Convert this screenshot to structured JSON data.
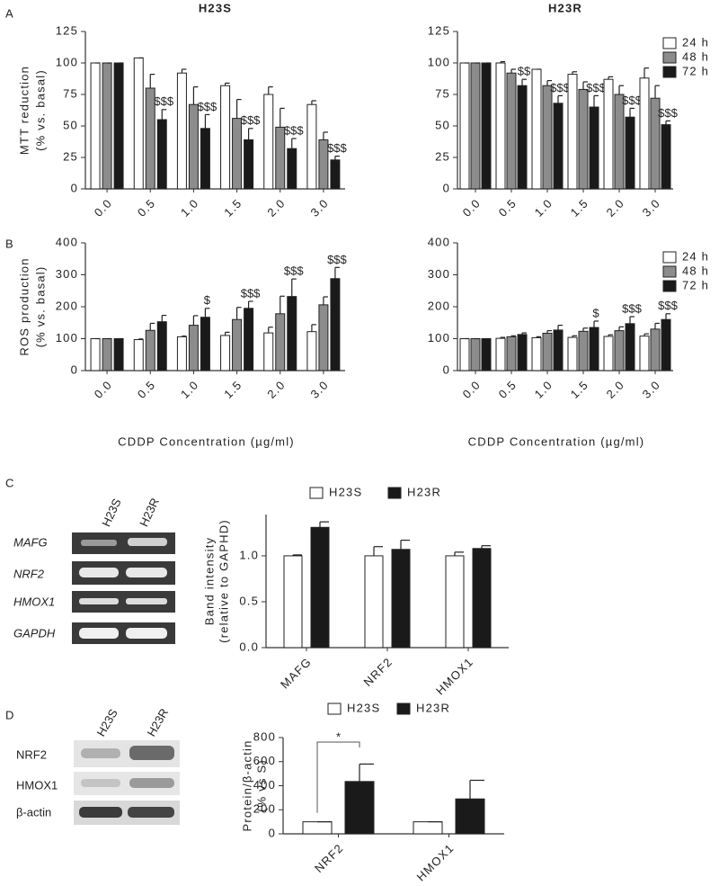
{
  "figure": {
    "panel_labels": [
      "A",
      "B",
      "C",
      "D"
    ],
    "gels": [
      {
        "columns": [
          "H23S",
          "H23R"
        ],
        "rows": [
          "MAFG",
          "NRF2",
          "HMOX1",
          "GAPDH"
        ]
      },
      {
        "columns": [
          "H23S",
          "H23R"
        ],
        "rows": [
          "NRF2",
          "HMOX1",
          "β-actin"
        ]
      }
    ]
  },
  "chart_data": [
    {
      "type": "bar",
      "title": "H23S",
      "y_label": [
        "MTT reduction",
        "(% vs. basal)"
      ],
      "categories": [
        "0.0",
        "0.5",
        "1.0",
        "1.5",
        "2.0",
        "3.0"
      ],
      "ylim": [
        0,
        125
      ],
      "yticks": [
        0,
        25,
        50,
        75,
        100,
        125
      ],
      "series": [
        {
          "color": "#ffffff",
          "values": [
            100,
            104,
            92,
            82,
            75,
            67
          ],
          "errors": [
            0,
            0,
            3,
            2,
            6,
            3
          ]
        },
        {
          "color": "#8c8c8c",
          "values": [
            100,
            80,
            67,
            56,
            49,
            39
          ],
          "errors": [
            0,
            11,
            14,
            15,
            15,
            6
          ]
        },
        {
          "color": "#1a1a1a",
          "values": [
            100,
            55,
            48,
            39,
            32,
            23
          ],
          "errors": [
            0,
            8,
            11,
            9,
            8,
            3
          ],
          "annotations": [
            null,
            "$$$",
            "$$$",
            "$$$",
            "$$$",
            "$$$"
          ]
        }
      ]
    },
    {
      "type": "bar",
      "title": "H23R",
      "legend": "top-right",
      "categories": [
        "0.0",
        "0.5",
        "1.0",
        "1.5",
        "2.0",
        "3.0"
      ],
      "ylim": [
        0,
        125
      ],
      "yticks": [
        0,
        25,
        50,
        75,
        100,
        125
      ],
      "series": [
        {
          "name": "24 h",
          "color": "#ffffff",
          "values": [
            100,
            100,
            95,
            91,
            87,
            88
          ],
          "errors": [
            0,
            1,
            0,
            2,
            2,
            8
          ]
        },
        {
          "name": "48 h",
          "color": "#8c8c8c",
          "values": [
            100,
            92,
            82,
            79,
            75,
            72
          ],
          "errors": [
            0,
            3,
            4,
            6,
            7,
            10
          ]
        },
        {
          "name": "72 h",
          "color": "#1a1a1a",
          "values": [
            100,
            82,
            68,
            65,
            57,
            51
          ],
          "errors": [
            0,
            5,
            6,
            9,
            7,
            3
          ],
          "annotations": [
            null,
            "$$",
            "$$$",
            "$$$",
            "$$$",
            "$$$"
          ]
        }
      ]
    },
    {
      "type": "bar",
      "y_label": [
        "ROS production",
        "(% vs. basal)"
      ],
      "x_label": "CDDP Concentration (µg/ml)",
      "categories": [
        "0.0",
        "0.5",
        "1.0",
        "1.5",
        "2.0",
        "3.0"
      ],
      "ylim": [
        0,
        400
      ],
      "yticks": [
        0,
        100,
        200,
        300,
        400
      ],
      "series": [
        {
          "color": "#ffffff",
          "values": [
            100,
            97,
            106,
            110,
            118,
            122
          ],
          "errors": [
            0,
            2,
            2,
            10,
            18,
            22
          ]
        },
        {
          "color": "#8c8c8c",
          "values": [
            100,
            126,
            142,
            160,
            178,
            206
          ],
          "errors": [
            0,
            22,
            30,
            38,
            55,
            25
          ]
        },
        {
          "color": "#1a1a1a",
          "values": [
            100,
            153,
            167,
            195,
            232,
            288
          ],
          "errors": [
            0,
            20,
            28,
            22,
            55,
            35
          ],
          "annotations": [
            null,
            null,
            "$",
            "$$$",
            "$$$",
            "$$$"
          ]
        }
      ]
    },
    {
      "type": "bar",
      "legend": "top-right",
      "x_label": "CDDP Concentration (µg/ml)",
      "categories": [
        "0.0",
        "0.5",
        "1.0",
        "1.5",
        "2.0",
        "3.0"
      ],
      "ylim": [
        0,
        400
      ],
      "yticks": [
        0,
        100,
        200,
        300,
        400
      ],
      "series": [
        {
          "name": "24 h",
          "color": "#ffffff",
          "values": [
            100,
            101,
            103,
            104,
            107,
            108
          ],
          "errors": [
            0,
            3,
            3,
            5,
            5,
            7
          ]
        },
        {
          "name": "48 h",
          "color": "#8c8c8c",
          "values": [
            100,
            106,
            117,
            123,
            125,
            130
          ],
          "errors": [
            0,
            3,
            8,
            10,
            12,
            18
          ]
        },
        {
          "name": "72 h",
          "color": "#1a1a1a",
          "values": [
            100,
            113,
            127,
            135,
            147,
            160
          ],
          "errors": [
            0,
            5,
            15,
            20,
            22,
            18
          ],
          "annotations": [
            null,
            null,
            null,
            "$",
            "$$$",
            "$$$"
          ]
        }
      ]
    },
    {
      "type": "bar",
      "legend": "top",
      "y_label": [
        "Band intensity",
        "(relative to GAPHD)"
      ],
      "categories": [
        "MAFG",
        "NRF2",
        "HMOX1"
      ],
      "ylim": [
        0,
        1.45
      ],
      "yticks": [
        {
          "value": 0,
          "label": "0.0"
        },
        0.5,
        {
          "value": 1,
          "label": "1.0"
        }
      ],
      "series": [
        {
          "name": "H23S",
          "color": "#ffffff",
          "values": [
            1.0,
            1.0,
            1.0
          ],
          "errors": [
            0.01,
            0.1,
            0.04
          ]
        },
        {
          "name": "H23R",
          "color": "#1a1a1a",
          "values": [
            1.31,
            1.07,
            1.08
          ],
          "errors": [
            0.06,
            0.1,
            0.03
          ]
        }
      ]
    },
    {
      "type": "bar",
      "legend": "top",
      "y_label": [
        "Protein/β-actin",
        "(% vs S)"
      ],
      "annotation": "*",
      "categories": [
        "NRF2",
        "HMOX1"
      ],
      "ylim": [
        0,
        800
      ],
      "yticks": [
        0,
        200,
        400,
        600,
        800
      ],
      "series": [
        {
          "name": "H23S",
          "color": "#ffffff",
          "values": [
            100,
            100
          ],
          "errors": [
            0,
            0
          ]
        },
        {
          "name": "H23R",
          "color": "#1a1a1a",
          "values": [
            435,
            290
          ],
          "errors": [
            145,
            155
          ]
        }
      ]
    }
  ]
}
